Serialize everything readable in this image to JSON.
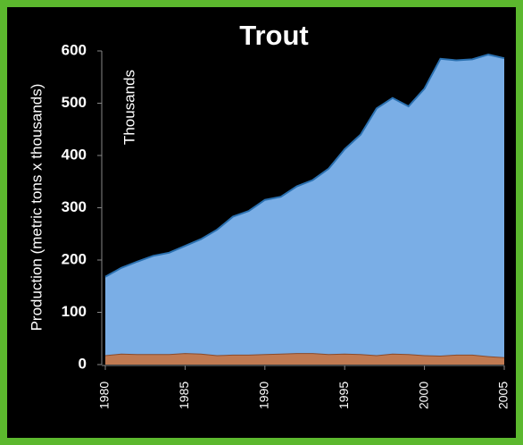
{
  "chart_data": {
    "type": "stacked_area",
    "title": "Trout",
    "y_label": "Production (metric tons x thousands)",
    "annotation": "Thousands",
    "x": [
      1980,
      1981,
      1982,
      1983,
      1984,
      1985,
      1986,
      1987,
      1988,
      1989,
      1990,
      1991,
      1992,
      1993,
      1994,
      1995,
      1996,
      1997,
      1998,
      1999,
      2000,
      2001,
      2002,
      2003,
      2004,
      2005
    ],
    "series": [
      {
        "color": "#c07a52",
        "values": [
          18,
          21,
          20,
          20,
          20,
          22,
          21,
          18,
          19,
          19,
          20,
          21,
          22,
          22,
          20,
          21,
          20,
          18,
          21,
          20,
          18,
          17,
          19,
          19,
          16,
          14
        ]
      },
      {
        "color": "#7aaee6",
        "values": [
          150,
          164,
          177,
          188,
          194,
          205,
          219,
          240,
          264,
          275,
          295,
          300,
          319,
          331,
          355,
          391,
          420,
          472,
          489,
          474,
          510,
          568,
          563,
          565,
          577,
          572
        ]
      }
    ],
    "xlim": [
      1980,
      2005
    ],
    "xticks": [
      1980,
      1985,
      1990,
      1995,
      2000,
      2005
    ],
    "ylim": [
      0,
      600
    ],
    "yticks": [
      0,
      100,
      200,
      300,
      400,
      500,
      600
    ]
  }
}
